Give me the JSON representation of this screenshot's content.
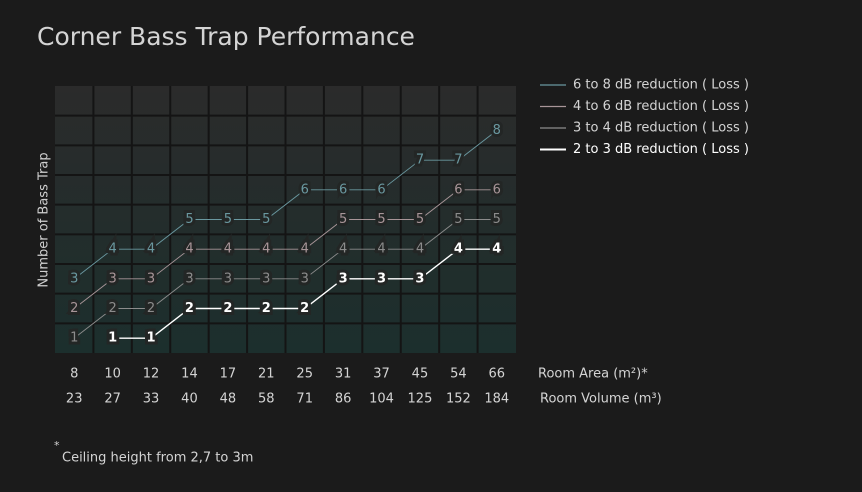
{
  "chart_data": {
    "type": "line",
    "title": "Corner Bass Trap Performance",
    "y_label": "Number of Bass Trap",
    "x_label": "Room Area (m²)*",
    "secondary_x_label": "Room Volume (m³)",
    "categories": [
      "8",
      "10",
      "12",
      "14",
      "17",
      "21",
      "25",
      "31",
      "37",
      "45",
      "54",
      "66"
    ],
    "secondary_categories": [
      "23",
      "27",
      "33",
      "40",
      "48",
      "58",
      "71",
      "86",
      "104",
      "125",
      "152",
      "184"
    ],
    "series": [
      {
        "name": "6 to 8 dB reduction ( Loss )",
        "color": "#6a98a0",
        "values": [
          3,
          4,
          4,
          5,
          5,
          5,
          6,
          6,
          6,
          7,
          7,
          8
        ]
      },
      {
        "name": "4 to 6 dB reduction ( Loss )",
        "color": "#a89598",
        "values": [
          2,
          3,
          3,
          4,
          4,
          4,
          4,
          5,
          5,
          5,
          6,
          6
        ]
      },
      {
        "name": "3 to 4 dB reduction ( Loss )",
        "color": "#8c8c8c",
        "values": [
          1,
          2,
          2,
          3,
          3,
          3,
          3,
          4,
          4,
          4,
          5,
          5
        ]
      },
      {
        "name": "2 to 3 dB reduction ( Loss )",
        "color": "#ffffff",
        "values": [
          null,
          1,
          1,
          2,
          2,
          2,
          2,
          3,
          3,
          3,
          4,
          4
        ]
      }
    ],
    "ylim": [
      0.5,
      9.5
    ],
    "grid": true,
    "legend": "right",
    "footnote_marker": "*",
    "footnote": "Ceiling height from 2,7 to 3m"
  }
}
